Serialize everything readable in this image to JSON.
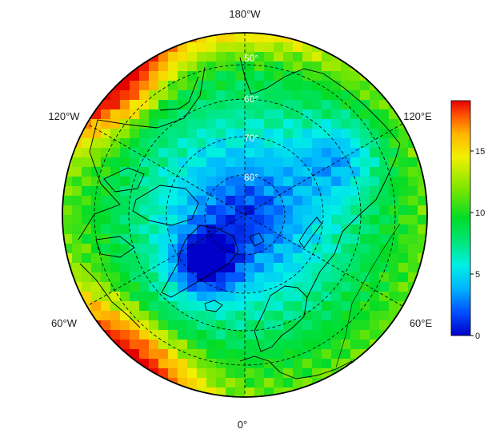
{
  "map": {
    "projection": "north-polar-stereographic",
    "longitude_labels": [
      "180°W",
      "120°E",
      "60°E",
      "0°",
      "60°W",
      "120°W"
    ],
    "latitude_labels": [
      "50°",
      "60°",
      "70°",
      "80°"
    ],
    "colorbar": {
      "ticks": [
        "0",
        "5",
        "10",
        "15"
      ],
      "range": [
        0,
        19
      ],
      "colors": [
        "#0000c8",
        "#0050ff",
        "#00b4ff",
        "#00f0e6",
        "#00e678",
        "#00dc28",
        "#78e600",
        "#f0f000",
        "#ffb400",
        "#ff5000",
        "#e60000"
      ]
    },
    "colors": {
      "outline": "#000000",
      "graticule": "#000000",
      "background": "#ffffff"
    }
  }
}
